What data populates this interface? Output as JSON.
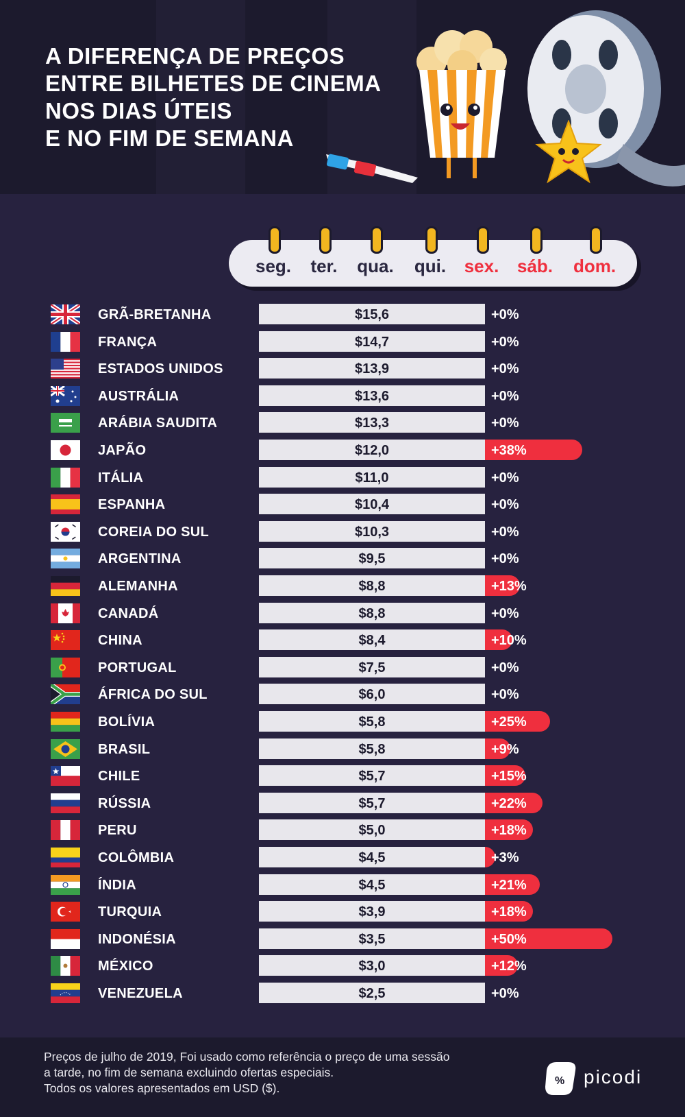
{
  "title": "A DIFERENÇA DE PREÇOS\nENTRE BILHETES DE CINEMA\nNOS DIAS ÚTEIS\nE NO FIM DE SEMANA",
  "days": [
    {
      "label": "seg.",
      "weekend": false
    },
    {
      "label": "ter.",
      "weekend": false
    },
    {
      "label": "qua.",
      "weekend": false
    },
    {
      "label": "qui.",
      "weekend": false
    },
    {
      "label": "sex.",
      "weekend": true
    },
    {
      "label": "sáb.",
      "weekend": true
    },
    {
      "label": "dom.",
      "weekend": true
    }
  ],
  "colors": {
    "background": "#27223f",
    "header": "#1c1a2d",
    "price_bar": "#e8e7ec",
    "increase": "#ef2f3e",
    "weekday_text": "#2a2740",
    "weekend_text": "#ef2f3e",
    "ring": "#f2b620"
  },
  "chart_data": {
    "type": "bar",
    "categories": [
      "GRÃ-BRETANHA",
      "FRANÇA",
      "ESTADOS UNIDOS",
      "AUSTRÁLIA",
      "ARÁBIA SAUDITA",
      "JAPÃO",
      "ITÁLIA",
      "ESPANHA",
      "COREIA DO SUL",
      "ARGENTINA",
      "ALEMANHA",
      "CANADÁ",
      "CHINA",
      "PORTUGAL",
      "ÁFRICA DO SUL",
      "BOLÍVIA",
      "BRASIL",
      "CHILE",
      "RÚSSIA",
      "PERU",
      "COLÔMBIA",
      "ÍNDIA",
      "TURQUIA",
      "INDONÉSIA",
      "MÉXICO",
      "VENEZUELA"
    ],
    "series": [
      {
        "values": [
          15.6,
          14.7,
          13.9,
          13.6,
          13.3,
          12.0,
          11.0,
          10.4,
          10.3,
          9.5,
          8.8,
          8.8,
          8.4,
          7.5,
          6.0,
          5.8,
          5.8,
          5.7,
          5.7,
          5.0,
          4.5,
          4.5,
          3.9,
          3.5,
          3.0,
          2.5
        ]
      },
      {
        "values": [
          0,
          0,
          0,
          0,
          0,
          38,
          0,
          0,
          0,
          0,
          13,
          0,
          10,
          0,
          0,
          25,
          9,
          15,
          22,
          18,
          3,
          21,
          18,
          50,
          12,
          0
        ]
      }
    ],
    "price_labels": [
      "$15,6",
      "$14,7",
      "$13,9",
      "$13,6",
      "$13,3",
      "$12,0",
      "$11,0",
      "$10,4",
      "$10,3",
      "$9,5",
      "$8,8",
      "$8,8",
      "$8,4",
      "$7,5",
      "$6,0",
      "$5,8",
      "$5,8",
      "$5,7",
      "$5,7",
      "$5,0",
      "$4,5",
      "$4,5",
      "$3,9",
      "$3,5",
      "$3,0",
      "$2,5"
    ],
    "increase_labels": [
      "+0%",
      "+0%",
      "+0%",
      "+0%",
      "+0%",
      "+38%",
      "+0%",
      "+0%",
      "+0%",
      "+0%",
      "+13%",
      "+0%",
      "+10%",
      "+0%",
      "+0%",
      "+25%",
      "+9%",
      "+15%",
      "+22%",
      "+18%",
      "+3%",
      "+21%",
      "+18%",
      "+50%",
      "+12%",
      "+0%"
    ],
    "flags": [
      "gb",
      "fr",
      "us",
      "au",
      "sa",
      "jp",
      "it",
      "es",
      "kr",
      "ar",
      "de",
      "ca",
      "cn",
      "pt",
      "za",
      "bo",
      "br",
      "cl",
      "ru",
      "pe",
      "co",
      "in",
      "tr",
      "id",
      "mx",
      "ve"
    ],
    "title": "A DIFERENÇA DE PREÇOS ENTRE BILHETES DE CINEMA NOS DIAS ÚTEIS E NO FIM DE SEMANA"
  },
  "footer": {
    "note": "Preços de julho de 2019, Foi usado como referência o preço de uma sessão\na tarde, no fim de semana excluindo ofertas especiais.\nTodos os valores apresentados em USD ($).",
    "brand": "picodi"
  }
}
